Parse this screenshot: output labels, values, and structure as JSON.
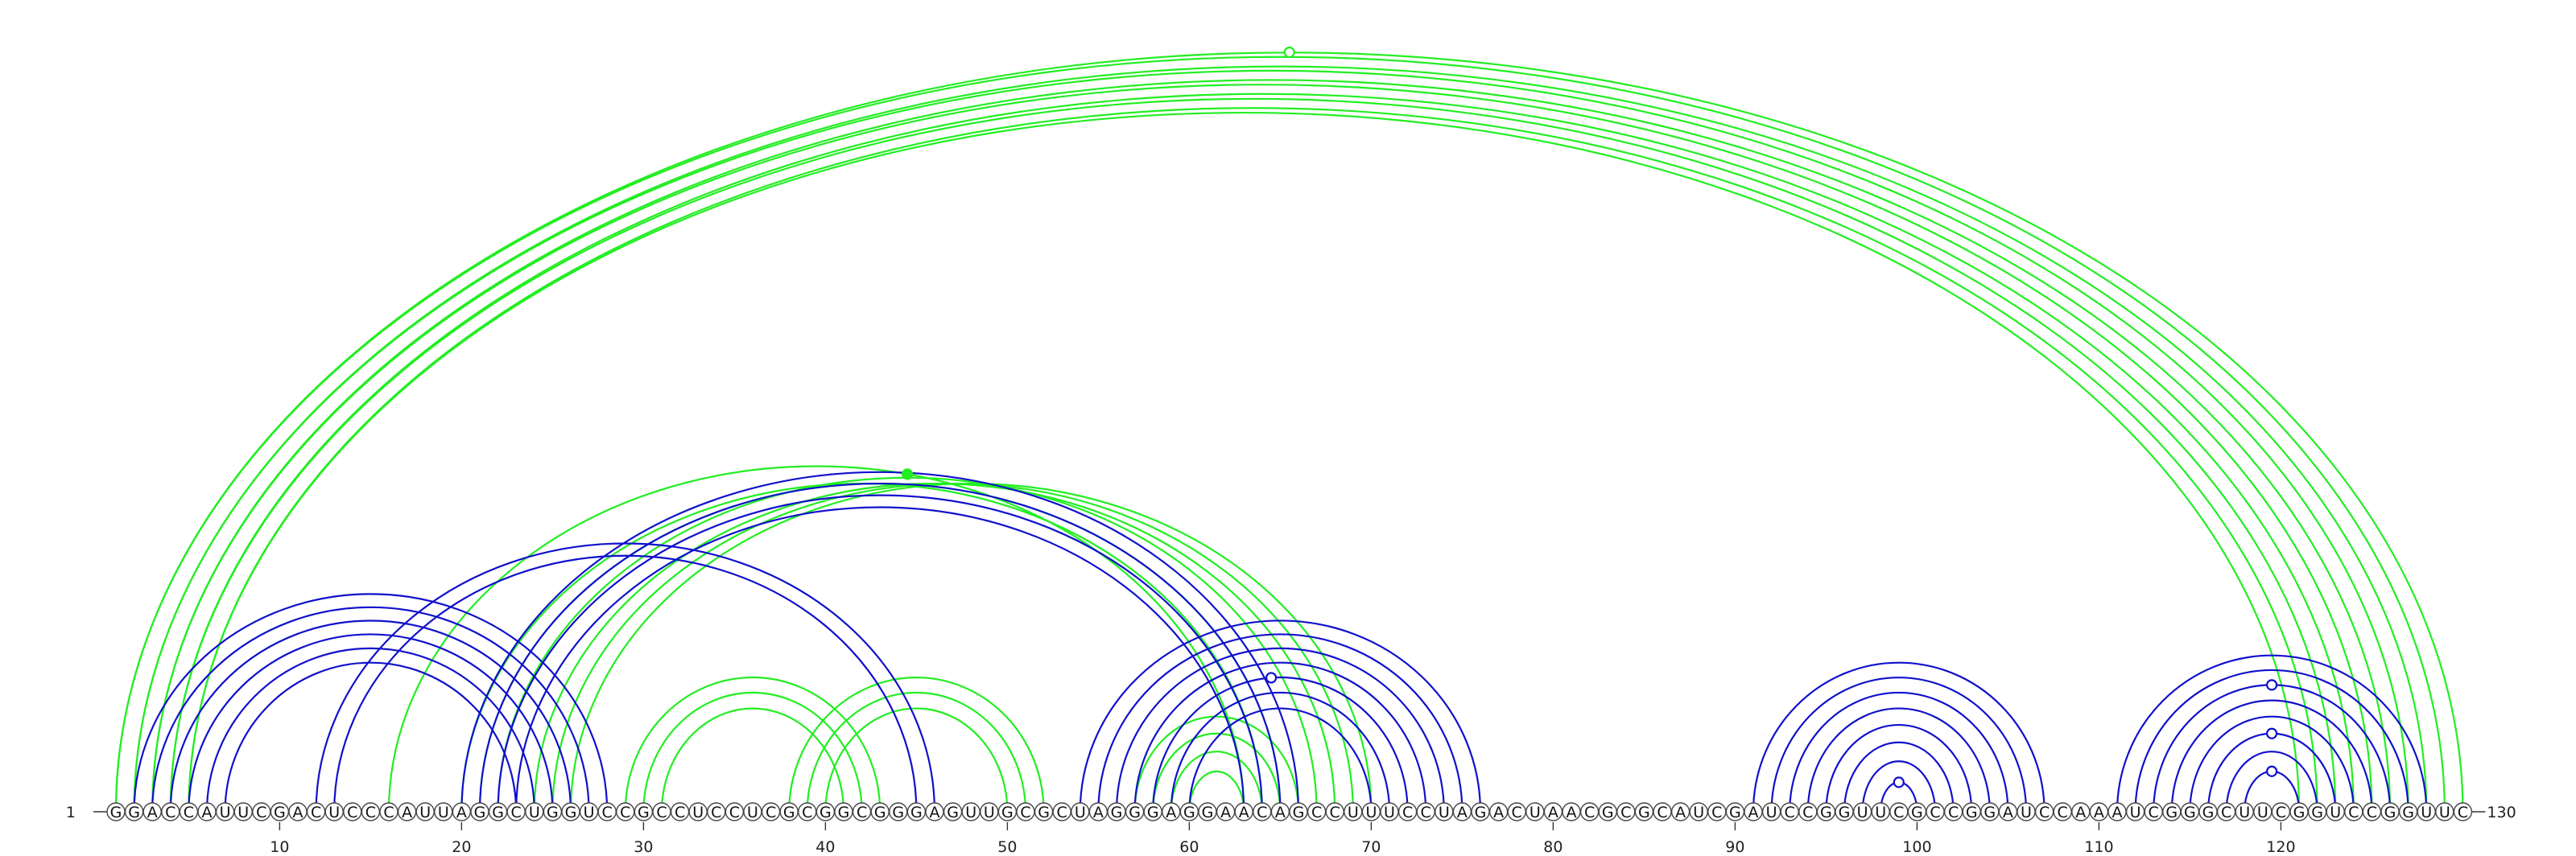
{
  "sequence": "GGACCAUUCGACUCCCAUUAGGCUGGUCCGCCUCCUCGCGGCGGGAGUUGCGCUAGGGAGGAACAGCCUUUCCUAGACUAACGCGCAUCGAUCCGGUUCGCCGGAUCCAAAUCGGGCUUCGGUCCGGUUC",
  "start_label": "1",
  "end_label": "130",
  "ticks": [
    "10",
    "20",
    "30",
    "40",
    "50",
    "60",
    "70",
    "80",
    "90",
    "100",
    "110",
    "120"
  ],
  "colors": {
    "green": "#22ee22",
    "blue": "#1010cc"
  },
  "arcs": {
    "green": [
      [
        1,
        130
      ],
      [
        1,
        129
      ],
      [
        2,
        128
      ],
      [
        2,
        127
      ],
      [
        3,
        126
      ],
      [
        3,
        125
      ],
      [
        4,
        124
      ],
      [
        4,
        123
      ],
      [
        5,
        122
      ],
      [
        5,
        121
      ],
      [
        16,
        63
      ],
      [
        20,
        64
      ],
      [
        21,
        65
      ],
      [
        22,
        67
      ],
      [
        24,
        68
      ],
      [
        25,
        69
      ],
      [
        26,
        70
      ],
      [
        29,
        43
      ],
      [
        30,
        42
      ],
      [
        31,
        41
      ],
      [
        38,
        52
      ],
      [
        39,
        51
      ],
      [
        40,
        50
      ],
      [
        57,
        66
      ],
      [
        58,
        65
      ],
      [
        59,
        64
      ],
      [
        60,
        63
      ]
    ],
    "blue": [
      [
        2,
        28
      ],
      [
        3,
        27
      ],
      [
        4,
        26
      ],
      [
        5,
        25
      ],
      [
        6,
        24
      ],
      [
        7,
        23
      ],
      [
        12,
        46
      ],
      [
        13,
        45
      ],
      [
        20,
        66
      ],
      [
        21,
        65
      ],
      [
        22,
        64
      ],
      [
        23,
        63
      ],
      [
        54,
        76
      ],
      [
        55,
        75
      ],
      [
        56,
        74
      ],
      [
        57,
        73
      ],
      [
        58,
        72
      ],
      [
        59,
        71
      ],
      [
        60,
        70
      ],
      [
        91,
        107
      ],
      [
        92,
        106
      ],
      [
        93,
        105
      ],
      [
        94,
        104
      ],
      [
        95,
        103
      ],
      [
        96,
        102
      ],
      [
        97,
        101
      ],
      [
        98,
        100
      ],
      [
        111,
        128
      ],
      [
        112,
        127
      ],
      [
        113,
        126
      ],
      [
        114,
        125
      ],
      [
        115,
        124
      ],
      [
        116,
        123
      ],
      [
        117,
        122
      ],
      [
        118,
        121
      ]
    ]
  },
  "markers": [
    {
      "x": 65.5,
      "color": "green",
      "filled": false,
      "arc": [
        1,
        130
      ]
    },
    {
      "x": 44.5,
      "color": "green",
      "filled": true,
      "arc": [
        16,
        63
      ]
    },
    {
      "x": 64.5,
      "color": "blue",
      "filled": false,
      "arc": [
        58,
        72
      ]
    },
    {
      "x": 99,
      "color": "blue",
      "filled": false,
      "arc": [
        98,
        100
      ]
    },
    {
      "x": 119.5,
      "color": "blue",
      "filled": false,
      "arc": [
        113,
        126
      ]
    },
    {
      "x": 119.5,
      "color": "blue",
      "filled": false,
      "arc": [
        116,
        123
      ]
    },
    {
      "x": 119.5,
      "color": "blue",
      "filled": false,
      "arc": [
        118,
        121
      ]
    }
  ]
}
